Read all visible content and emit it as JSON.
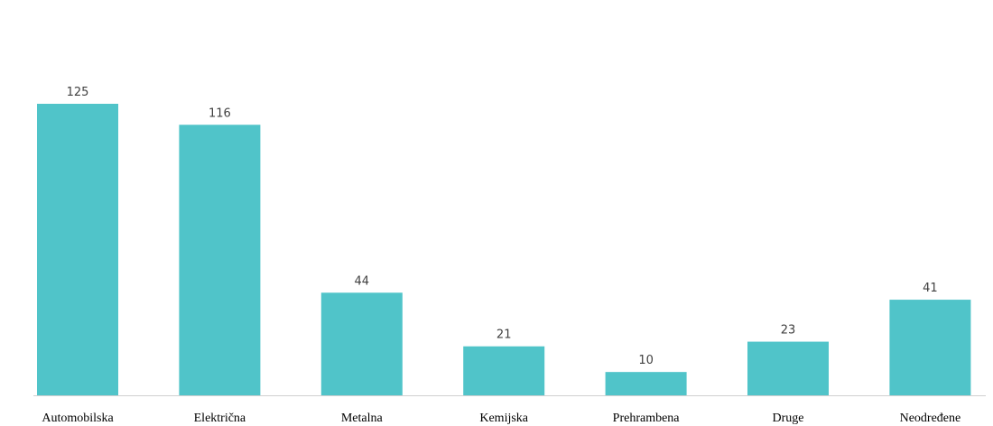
{
  "chart_data": {
    "type": "bar",
    "categories": [
      "Automobilska",
      "Električna",
      "Metalna",
      "Kemijska",
      "Prehrambena",
      "Druge",
      "Neodređene"
    ],
    "values": [
      125,
      116,
      44,
      21,
      10,
      23,
      41
    ],
    "color": "#50c4c9"
  }
}
